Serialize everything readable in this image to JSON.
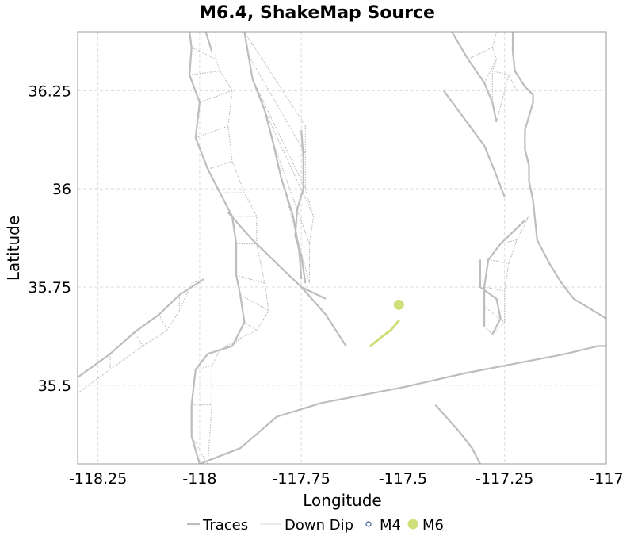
{
  "chart_data": {
    "type": "map",
    "title": "M6.4, ShakeMap Source",
    "xlabel": "Longitude",
    "ylabel": "Latitude",
    "xlim": [
      -118.3,
      -117.0
    ],
    "ylim": [
      35.3,
      36.4
    ],
    "x_ticks": [
      -118.25,
      -118,
      -117.75,
      -117.5,
      -117.25,
      -117
    ],
    "x_tick_labels": [
      "-118.25",
      "-118",
      "-117.75",
      "-117.5",
      "-117.25",
      "-117"
    ],
    "y_ticks": [
      35.5,
      35.75,
      36,
      36.25
    ],
    "y_tick_labels": [
      "35.5",
      "35.75",
      "36",
      "36.25"
    ],
    "grid": true,
    "legend_position": "bottom",
    "legend": [
      {
        "label": "Traces",
        "symbol": "line",
        "color": "#bdbdbd"
      },
      {
        "label": "Down Dip",
        "symbol": "line-light",
        "color": "#e0e0e0"
      },
      {
        "label": "M4",
        "symbol": "open-circle",
        "color": "#3a5f8f"
      },
      {
        "label": "M6",
        "symbol": "filled-circle",
        "color": "#cfe07a"
      }
    ],
    "series": [
      {
        "name": "Traces",
        "color": "#bdbdbd",
        "lines": [
          [
            [
              -118.025,
              36.4
            ],
            [
              -118.02,
              36.36
            ],
            [
              -118.025,
              36.29
            ],
            [
              -118.0,
              36.22
            ],
            [
              -118.01,
              36.13
            ],
            [
              -117.98,
              36.05
            ],
            [
              -117.95,
              35.99
            ],
            [
              -117.92,
              35.93
            ],
            [
              -117.91,
              35.86
            ],
            [
              -117.91,
              35.78
            ],
            [
              -117.9,
              35.73
            ],
            [
              -117.89,
              35.66
            ],
            [
              -117.92,
              35.6
            ],
            [
              -117.98,
              35.58
            ],
            [
              -118.01,
              35.54
            ],
            [
              -118.02,
              35.45
            ],
            [
              -118.02,
              35.37
            ],
            [
              -118.0,
              35.3
            ]
          ],
          [
            [
              -117.985,
              36.4
            ],
            [
              -117.97,
              36.35
            ]
          ],
          [
            [
              -117.93,
              35.94
            ],
            [
              -117.87,
              35.87
            ],
            [
              -117.8,
              35.8
            ],
            [
              -117.75,
              35.75
            ],
            [
              -117.69,
              35.68
            ],
            [
              -117.64,
              35.6
            ]
          ],
          [
            [
              -117.89,
              36.4
            ],
            [
              -117.88,
              36.34
            ],
            [
              -117.87,
              36.28
            ],
            [
              -117.84,
              36.2
            ],
            [
              -117.82,
              36.12
            ],
            [
              -117.8,
              36.03
            ],
            [
              -117.77,
              35.93
            ],
            [
              -117.755,
              35.84
            ],
            [
              -117.75,
              35.77
            ]
          ],
          [
            [
              -117.75,
              36.15
            ],
            [
              -117.745,
              36.08
            ],
            [
              -117.745,
              36.0
            ],
            [
              -117.76,
              35.95
            ],
            [
              -117.765,
              35.88
            ],
            [
              -117.75,
              35.83
            ],
            [
              -117.74,
              35.76
            ]
          ],
          [
            [
              -117.75,
              35.75
            ],
            [
              -117.69,
              35.72
            ]
          ],
          [
            [
              -117.38,
              36.4
            ],
            [
              -117.34,
              36.33
            ],
            [
              -117.3,
              36.27
            ],
            [
              -117.28,
              36.22
            ],
            [
              -117.27,
              36.17
            ]
          ],
          [
            [
              -117.4,
              36.25
            ],
            [
              -117.35,
              36.18
            ],
            [
              -117.3,
              36.11
            ],
            [
              -117.28,
              36.06
            ],
            [
              -117.25,
              35.98
            ]
          ],
          [
            [
              -117.23,
              36.4
            ],
            [
              -117.23,
              36.35
            ],
            [
              -117.225,
              36.3
            ],
            [
              -117.2,
              36.26
            ],
            [
              -117.18,
              36.24
            ],
            [
              -117.18,
              36.22
            ],
            [
              -117.2,
              36.15
            ],
            [
              -117.2,
              36.1
            ],
            [
              -117.19,
              36.06
            ],
            [
              -117.19,
              36.02
            ],
            [
              -117.18,
              35.97
            ],
            [
              -117.17,
              35.87
            ],
            [
              -117.14,
              35.81
            ],
            [
              -117.11,
              35.76
            ],
            [
              -117.08,
              35.72
            ],
            [
              -117.0,
              35.67
            ]
          ],
          [
            [
              -117.2,
              35.92
            ],
            [
              -117.26,
              35.86
            ],
            [
              -117.29,
              35.82
            ],
            [
              -117.3,
              35.75
            ],
            [
              -117.3,
              35.7
            ],
            [
              -117.3,
              35.65
            ]
          ],
          [
            [
              -117.31,
              35.82
            ],
            [
              -117.31,
              35.75
            ],
            [
              -117.27,
              35.72
            ],
            [
              -117.26,
              35.67
            ],
            [
              -117.28,
              35.63
            ]
          ],
          [
            [
              -118.3,
              35.52
            ],
            [
              -118.22,
              35.58
            ],
            [
              -118.16,
              35.635
            ],
            [
              -118.1,
              35.68
            ],
            [
              -118.05,
              35.73
            ],
            [
              -117.99,
              35.77
            ]
          ],
          [
            [
              -118.0,
              35.3
            ],
            [
              -117.9,
              35.34
            ],
            [
              -117.81,
              35.42
            ],
            [
              -117.7,
              35.455
            ],
            [
              -117.5,
              35.495
            ],
            [
              -117.35,
              35.53
            ],
            [
              -117.2,
              35.56
            ],
            [
              -117.1,
              35.58
            ],
            [
              -117.02,
              35.6
            ],
            [
              -117.0,
              35.6
            ]
          ],
          [
            [
              -117.42,
              35.45
            ],
            [
              -117.36,
              35.38
            ],
            [
              -117.33,
              35.34
            ],
            [
              -117.31,
              35.3
            ]
          ]
        ]
      },
      {
        "name": "Down Dip",
        "color": "#e0e0e0",
        "lines": [
          [
            [
              -117.96,
              36.4
            ],
            [
              -117.96,
              36.33
            ],
            [
              -117.95,
              36.3
            ],
            [
              -117.92,
              36.25
            ],
            [
              -117.93,
              36.16
            ],
            [
              -117.92,
              36.07
            ],
            [
              -117.89,
              35.99
            ],
            [
              -117.86,
              35.93
            ],
            [
              -117.86,
              35.86
            ],
            [
              -117.84,
              35.76
            ],
            [
              -117.83,
              35.69
            ],
            [
              -117.86,
              35.64
            ],
            [
              -117.9,
              35.62
            ],
            [
              -117.95,
              35.59
            ],
            [
              -117.97,
              35.55
            ],
            [
              -117.97,
              35.45
            ],
            [
              -117.98,
              35.3
            ]
          ],
          [
            [
              -117.74,
              36.16
            ],
            [
              -117.74,
              36.09
            ],
            [
              -117.74,
              36.0
            ],
            [
              -117.72,
              35.93
            ],
            [
              -117.73,
              35.86
            ],
            [
              -117.73,
              35.76
            ]
          ],
          [
            [
              -117.27,
              36.4
            ],
            [
              -117.28,
              36.36
            ],
            [
              -117.27,
              36.33
            ],
            [
              -117.28,
              36.3
            ],
            [
              -117.24,
              36.29
            ],
            [
              -117.22,
              36.25
            ]
          ],
          [
            [
              -117.19,
              35.93
            ],
            [
              -117.22,
              35.87
            ],
            [
              -117.24,
              35.81
            ],
            [
              -117.25,
              35.74
            ],
            [
              -117.25,
              35.66
            ],
            [
              -117.28,
              35.63
            ]
          ],
          [
            [
              -118.3,
              35.48
            ],
            [
              -118.22,
              35.54
            ],
            [
              -118.14,
              35.6
            ],
            [
              -118.08,
              35.64
            ],
            [
              -118.05,
              35.69
            ],
            [
              -118.02,
              35.76
            ]
          ]
        ]
      },
      {
        "name": "M6",
        "color": "#cfe07a",
        "lines": [
          [
            [
              -117.58,
              35.6
            ],
            [
              -117.55,
              35.625
            ],
            [
              -117.53,
              35.64
            ],
            [
              -117.51,
              35.665
            ]
          ]
        ],
        "points": [
          [
            -117.51,
            35.705
          ]
        ]
      }
    ]
  }
}
